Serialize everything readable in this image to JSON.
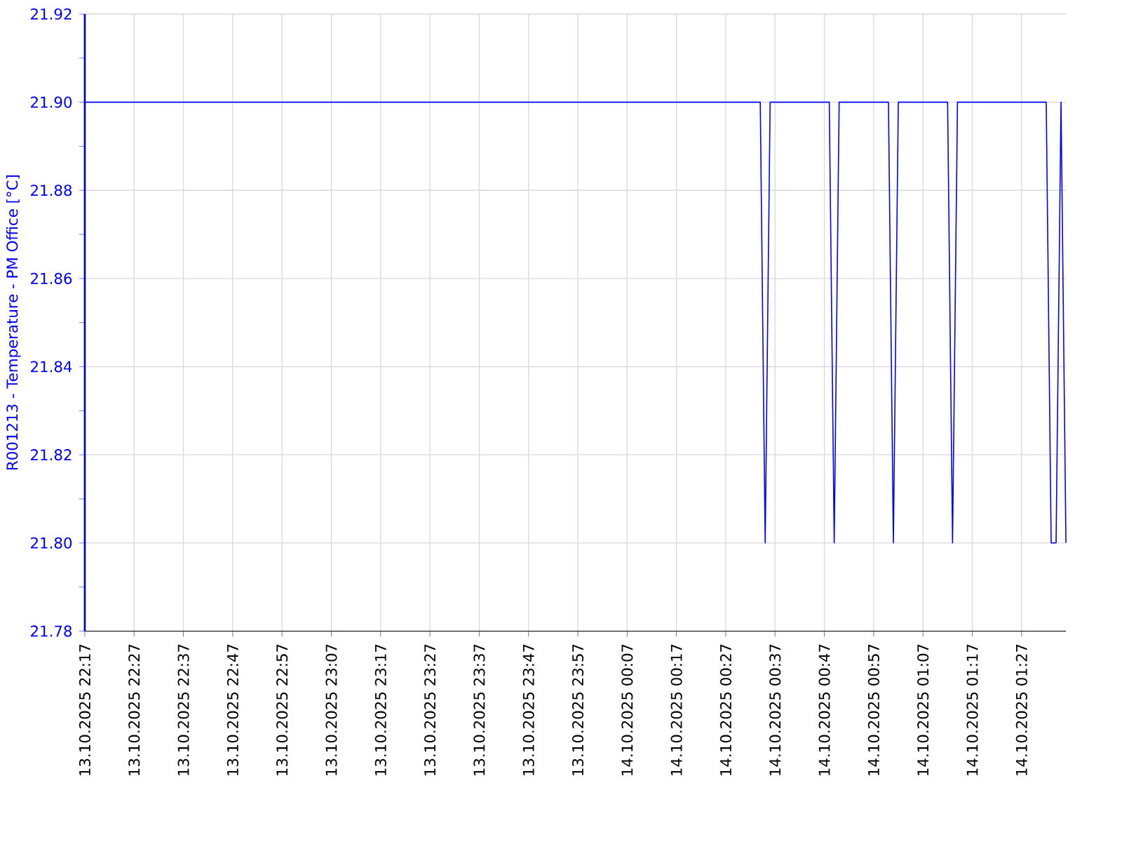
{
  "chart_data": {
    "type": "line",
    "ylabel": "R001213 - Temperature - PM Office [°C]",
    "x": [
      "2025-10-13T22:17",
      "2025-10-14T00:34",
      "2025-10-14T00:35",
      "2025-10-14T00:36",
      "2025-10-14T00:48",
      "2025-10-14T00:49",
      "2025-10-14T00:50",
      "2025-10-14T01:00",
      "2025-10-14T01:01",
      "2025-10-14T01:02",
      "2025-10-14T01:12",
      "2025-10-14T01:13",
      "2025-10-14T01:14",
      "2025-10-14T01:32",
      "2025-10-14T01:33",
      "2025-10-14T01:34",
      "2025-10-14T01:35",
      "2025-10-14T01:36"
    ],
    "series": [
      {
        "color": "#0000ff",
        "values": [
          21.9,
          21.9,
          21.8,
          21.9,
          21.9,
          21.8,
          21.9,
          21.9,
          21.8,
          21.9,
          21.9,
          21.8,
          21.9,
          21.9,
          21.8,
          21.8,
          21.9,
          21.8
        ]
      }
    ],
    "xlim": [
      "2025-10-13T22:17",
      "2025-10-14T01:36"
    ],
    "xticks": [
      {
        "value": "2025-10-13T22:17",
        "label": "13.10.2025 22:17"
      },
      {
        "value": "2025-10-13T22:27",
        "label": "13.10.2025 22:27"
      },
      {
        "value": "2025-10-13T22:37",
        "label": "13.10.2025 22:37"
      },
      {
        "value": "2025-10-13T22:47",
        "label": "13.10.2025 22:47"
      },
      {
        "value": "2025-10-13T22:57",
        "label": "13.10.2025 22:57"
      },
      {
        "value": "2025-10-13T23:07",
        "label": "13.10.2025 23:07"
      },
      {
        "value": "2025-10-13T23:17",
        "label": "13.10.2025 23:17"
      },
      {
        "value": "2025-10-13T23:27",
        "label": "13.10.2025 23:27"
      },
      {
        "value": "2025-10-13T23:37",
        "label": "13.10.2025 23:37"
      },
      {
        "value": "2025-10-13T23:47",
        "label": "13.10.2025 23:47"
      },
      {
        "value": "2025-10-13T23:57",
        "label": "13.10.2025 23:57"
      },
      {
        "value": "2025-10-14T00:07",
        "label": "14.10.2025 00:07"
      },
      {
        "value": "2025-10-14T00:17",
        "label": "14.10.2025 00:17"
      },
      {
        "value": "2025-10-14T00:27",
        "label": "14.10.2025 00:27"
      },
      {
        "value": "2025-10-14T00:37",
        "label": "14.10.2025 00:37"
      },
      {
        "value": "2025-10-14T00:47",
        "label": "14.10.2025 00:47"
      },
      {
        "value": "2025-10-14T00:57",
        "label": "14.10.2025 00:57"
      },
      {
        "value": "2025-10-14T01:07",
        "label": "14.10.2025 01:07"
      },
      {
        "value": "2025-10-14T01:17",
        "label": "14.10.2025 01:17"
      },
      {
        "value": "2025-10-14T01:27",
        "label": "14.10.2025 01:27"
      }
    ],
    "ylim": [
      21.78,
      21.92
    ],
    "yticks": [
      {
        "value": 21.78,
        "label": "21.78"
      },
      {
        "value": 21.8,
        "label": "21.80"
      },
      {
        "value": 21.82,
        "label": "21.82"
      },
      {
        "value": 21.84,
        "label": "21.84"
      },
      {
        "value": 21.86,
        "label": "21.86"
      },
      {
        "value": 21.88,
        "label": "21.88"
      },
      {
        "value": 21.9,
        "label": "21.90"
      },
      {
        "value": 21.92,
        "label": "21.92"
      }
    ],
    "grid": true
  }
}
